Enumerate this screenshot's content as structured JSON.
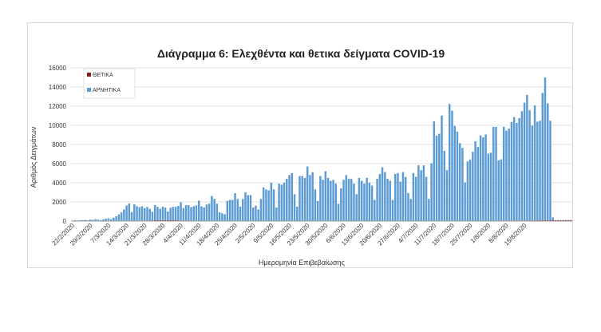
{
  "chart_data": {
    "type": "bar",
    "stacked": true,
    "title": "Διάγραμμα 6: Ελεχθέντα και θετικα δείγματα COVID-19",
    "xlabel": "Ημερομηνία Επιβεβαίωσης",
    "ylabel": "Αριθμός Δειγμάτων",
    "ylim": [
      0,
      16000
    ],
    "yticks": [
      0,
      2000,
      4000,
      6000,
      8000,
      10000,
      12000,
      14000,
      16000
    ],
    "grid": true,
    "legend_position": "top-left",
    "xtick_labels": [
      "22/2/2020",
      "29/2/2020",
      "7/3/2020",
      "14/3/2020",
      "21/3/2020",
      "28/3/2020",
      "4/4/2020",
      "11/4/2020",
      "18/4/2020",
      "25/4/2020",
      "2/5/2020",
      "9/5/2020",
      "16/5/2020",
      "23/5/2020",
      "30/5/2020",
      "6/6/2020",
      "13/6/2020",
      "20/6/2020",
      "27/6/2020",
      "4/7/2020",
      "11/7/2020",
      "18/7/2020",
      "25/7/2020",
      "1/8/2020",
      "8/8/2020",
      "15/8/2020"
    ],
    "x_start": "2020-02-22",
    "series": [
      {
        "name": "ΘΕΤΙΚΑ",
        "color": "#8b1a1a",
        "values": [
          0,
          0,
          0,
          0,
          0,
          0,
          0,
          0,
          0,
          0,
          0,
          0,
          0,
          0,
          0,
          0,
          2,
          3,
          5,
          8,
          15,
          20,
          28,
          35,
          40,
          45,
          50,
          55,
          60,
          65,
          70,
          75,
          80,
          85,
          90,
          95,
          100,
          95,
          90,
          85,
          80,
          75,
          70,
          65,
          60,
          55,
          50,
          45,
          40,
          35,
          30,
          28,
          26,
          24,
          22,
          20,
          18,
          16,
          15,
          14,
          13,
          12,
          11,
          10,
          10,
          10,
          9,
          9,
          8,
          8,
          8,
          7,
          7,
          7,
          6,
          6,
          6,
          6,
          5,
          5,
          5,
          5,
          5,
          5,
          5,
          5,
          5,
          5,
          5,
          5,
          5,
          5,
          5,
          5,
          5,
          5,
          5,
          5,
          5,
          5,
          5,
          5,
          5,
          6,
          6,
          6,
          6,
          7,
          7,
          7,
          8,
          8,
          8,
          9,
          9,
          10,
          10,
          10,
          11,
          11,
          12,
          12,
          13,
          13,
          14,
          14,
          15,
          15,
          16,
          16,
          17,
          17,
          18,
          18,
          19,
          19,
          20,
          20,
          21,
          21,
          22,
          23,
          24,
          25,
          26,
          27,
          28,
          29,
          30,
          31,
          32,
          33,
          34,
          35,
          36,
          37,
          38,
          39,
          40,
          41,
          42,
          43,
          44,
          45,
          46,
          47,
          48,
          49,
          50,
          52,
          54,
          56,
          58,
          60,
          62,
          64,
          66,
          68,
          70,
          72,
          74,
          76,
          78,
          80,
          82,
          84,
          86,
          88,
          90,
          92,
          94,
          96,
          98,
          100
        ]
      },
      {
        "name": "ΑΡΝΗΤΙΚΑ",
        "color": "#5b9bd5",
        "values": [
          50,
          80,
          60,
          90,
          100,
          120,
          80,
          150,
          120,
          200,
          150,
          100,
          180,
          250,
          300,
          200,
          350,
          500,
          700,
          900,
          1200,
          1600,
          1800,
          900,
          1700,
          1500,
          1400,
          1500,
          1300,
          1400,
          1200,
          900,
          1600,
          1400,
          1200,
          1400,
          1300,
          900,
          1300,
          1400,
          1400,
          1500,
          1900,
          1300,
          1600,
          1600,
          1400,
          1500,
          1600,
          2100,
          1500,
          1400,
          1700,
          1800,
          2600,
          2300,
          1800,
          900,
          800,
          700,
          2100,
          2200,
          2200,
          2900,
          2300,
          1500,
          2300,
          3000,
          2700,
          2700,
          1400,
          1600,
          1200,
          2300,
          3500,
          3300,
          3200,
          4000,
          3300,
          1400,
          3900,
          3800,
          4000,
          4400,
          4800,
          5000,
          2800,
          1500,
          4700,
          4700,
          4500,
          5700,
          4800,
          5100,
          3300,
          2100,
          4700,
          4300,
          5200,
          4500,
          4200,
          4300,
          3900,
          1800,
          3400,
          4300,
          4800,
          4400,
          4400,
          3900,
          2800,
          4500,
          4200,
          3900,
          4500,
          4000,
          3700,
          2200,
          4400,
          4900,
          5600,
          5100,
          4400,
          4200,
          2200,
          4900,
          5000,
          4100,
          5100,
          4600,
          2900,
          2300,
          5000,
          4600,
          5800,
          5300,
          5800,
          4600,
          2300,
          6000,
          10400,
          8900,
          9100,
          11000,
          7300,
          5300,
          12200,
          11500,
          9900,
          9300,
          8100,
          7600,
          4000,
          6200,
          6400,
          7200,
          8300,
          7700,
          8900,
          8700,
          9000,
          7000,
          7100,
          9800,
          9800,
          6300,
          6400,
          9800,
          9400,
          9600,
          10300,
          10800,
          10200,
          10700,
          11400,
          12300,
          13100,
          11500,
          9900,
          12000,
          10300,
          10400,
          13300,
          14900,
          12200,
          10400,
          300
        ]
      }
    ]
  }
}
